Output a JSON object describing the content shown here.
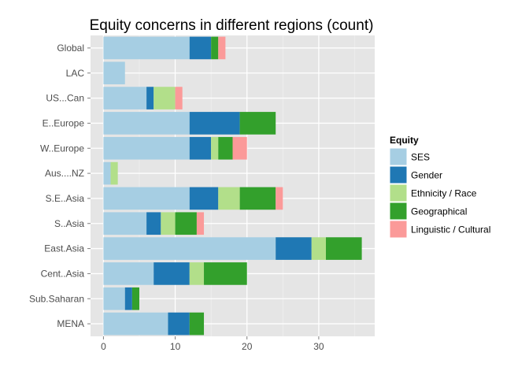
{
  "chart_data": {
    "type": "bar",
    "orientation": "horizontal",
    "stacked": true,
    "title": "Equity concerns in different regions (count)",
    "xlabel": "",
    "ylabel": "",
    "categories": [
      "Global",
      "LAC",
      "US...Can",
      "E..Europe",
      "W..Europe",
      "Aus....NZ",
      "S.E..Asia",
      "S..Asia",
      "East.Asia",
      "Cent..Asia",
      "Sub.Saharan",
      "MENA"
    ],
    "series": [
      {
        "name": "SES",
        "color": "#A6CEE3",
        "values": [
          12,
          3,
          6,
          12,
          12,
          1,
          12,
          6,
          24,
          7,
          3,
          9
        ]
      },
      {
        "name": "Gender",
        "color": "#1F78B4",
        "values": [
          3,
          0,
          1,
          7,
          3,
          0,
          4,
          2,
          5,
          5,
          1,
          3
        ]
      },
      {
        "name": "Ethnicity / Race",
        "color": "#B2DF8A",
        "values": [
          0,
          0,
          3,
          0,
          1,
          1,
          3,
          2,
          2,
          2,
          0,
          0
        ]
      },
      {
        "name": "Geographical",
        "color": "#33A02C",
        "values": [
          1,
          0,
          0,
          5,
          2,
          0,
          5,
          3,
          5,
          6,
          1,
          2
        ]
      },
      {
        "name": "Linguistic / Cultural",
        "color": "#FB9A99",
        "values": [
          1,
          0,
          1,
          0,
          2,
          0,
          1,
          1,
          0,
          0,
          0,
          0
        ]
      }
    ],
    "xlim": [
      -1.8,
      37.8
    ],
    "xticks": [
      0,
      10,
      20,
      30
    ],
    "grid": true,
    "legend": {
      "title": "Equity",
      "position": "right"
    }
  }
}
